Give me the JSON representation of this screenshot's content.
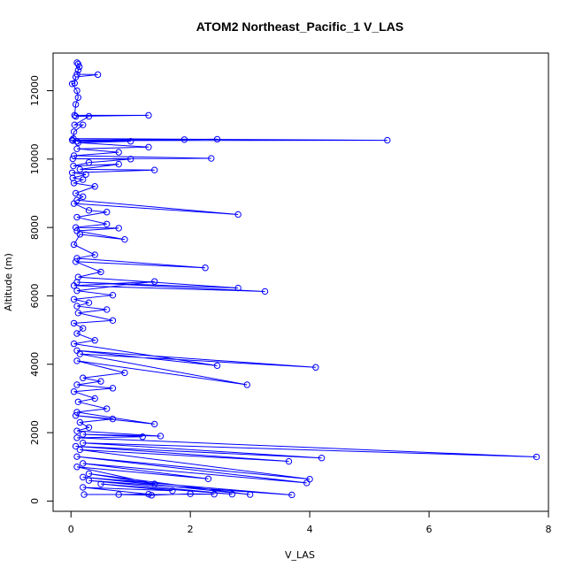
{
  "chart_data": {
    "type": "line",
    "title": "ATOM2 Northeast_Pacific_1 V_LAS",
    "xlabel": "V_LAS",
    "ylabel": "Altitude (m)",
    "xlim": [
      -0.3,
      8.0
    ],
    "ylim": [
      -300,
      13100
    ],
    "xticks": [
      0,
      2,
      4,
      6,
      8
    ],
    "yticks": [
      0,
      2000,
      4000,
      6000,
      8000,
      10000,
      12000
    ],
    "grid": false,
    "legend": "none",
    "series_color": "#0000ff",
    "marker": "open-circle",
    "series": [
      {
        "values": [
          [
            0.1,
            12820
          ],
          [
            0.12,
            12780
          ],
          [
            0.14,
            12700
          ],
          [
            0.12,
            12600
          ],
          [
            0.1,
            12480
          ],
          [
            0.45,
            12470
          ],
          [
            0.08,
            12400
          ],
          [
            0.06,
            12220
          ],
          [
            0.02,
            12200
          ],
          [
            0.1,
            12000
          ],
          [
            0.12,
            11800
          ],
          [
            0.08,
            11600
          ],
          [
            0.06,
            11280
          ],
          [
            1.3,
            11280
          ],
          [
            0.08,
            11250
          ],
          [
            0.3,
            11250
          ],
          [
            0.06,
            11000
          ],
          [
            0.2,
            11000
          ],
          [
            0.05,
            10800
          ],
          [
            0.04,
            10600
          ],
          [
            5.3,
            10550
          ],
          [
            0.03,
            10540
          ],
          [
            2.45,
            10580
          ],
          [
            0.02,
            10560
          ],
          [
            1.9,
            10570
          ],
          [
            0.1,
            10520
          ],
          [
            1.0,
            10520
          ],
          [
            0.12,
            10480
          ],
          [
            1.3,
            10350
          ],
          [
            0.1,
            10300
          ],
          [
            0.8,
            10200
          ],
          [
            0.05,
            10100
          ],
          [
            2.35,
            10020
          ],
          [
            0.03,
            10010
          ],
          [
            1.0,
            10000
          ],
          [
            0.3,
            9900
          ],
          [
            0.04,
            9800
          ],
          [
            0.8,
            9850
          ],
          [
            0.15,
            9700
          ],
          [
            1.4,
            9680
          ],
          [
            0.02,
            9600
          ],
          [
            0.25,
            9550
          ],
          [
            0.03,
            9450
          ],
          [
            0.2,
            9400
          ],
          [
            0.05,
            9300
          ],
          [
            0.4,
            9200
          ],
          [
            0.08,
            9000
          ],
          [
            0.2,
            8900
          ],
          [
            0.1,
            8800
          ],
          [
            2.8,
            8380
          ],
          [
            0.05,
            8700
          ],
          [
            0.3,
            8500
          ],
          [
            0.6,
            8450
          ],
          [
            0.1,
            8300
          ],
          [
            0.6,
            8100
          ],
          [
            0.08,
            8000
          ],
          [
            0.8,
            7980
          ],
          [
            0.1,
            7900
          ],
          [
            0.9,
            7650
          ],
          [
            0.15,
            7800
          ],
          [
            0.05,
            7500
          ],
          [
            0.4,
            7200
          ],
          [
            0.1,
            7100
          ],
          [
            2.25,
            6820
          ],
          [
            0.08,
            7000
          ],
          [
            0.5,
            6700
          ],
          [
            0.12,
            6550
          ],
          [
            2.8,
            6230
          ],
          [
            0.1,
            6400
          ],
          [
            3.25,
            6130
          ],
          [
            0.05,
            6300
          ],
          [
            1.4,
            6420
          ],
          [
            0.1,
            6150
          ],
          [
            0.7,
            6020
          ],
          [
            0.05,
            5900
          ],
          [
            0.3,
            5800
          ],
          [
            0.1,
            5700
          ],
          [
            0.6,
            5600
          ],
          [
            0.12,
            5500
          ],
          [
            0.7,
            5280
          ],
          [
            0.05,
            5200
          ],
          [
            0.2,
            5050
          ],
          [
            0.1,
            4900
          ],
          [
            0.4,
            4700
          ],
          [
            0.05,
            4600
          ],
          [
            2.45,
            3960
          ],
          [
            0.1,
            4400
          ],
          [
            4.1,
            3910
          ],
          [
            0.15,
            4300
          ],
          [
            2.95,
            3400
          ],
          [
            0.1,
            4100
          ],
          [
            0.9,
            3750
          ],
          [
            0.2,
            3600
          ],
          [
            0.5,
            3500
          ],
          [
            0.1,
            3400
          ],
          [
            0.7,
            3300
          ],
          [
            0.05,
            3200
          ],
          [
            0.4,
            3000
          ],
          [
            0.12,
            2900
          ],
          [
            0.6,
            2700
          ],
          [
            0.1,
            2600
          ],
          [
            1.4,
            2250
          ],
          [
            0.08,
            2500
          ],
          [
            0.7,
            2400
          ],
          [
            0.15,
            2300
          ],
          [
            0.3,
            2150
          ],
          [
            0.1,
            2050
          ],
          [
            1.5,
            1900
          ],
          [
            0.2,
            1950
          ],
          [
            1.2,
            1880
          ],
          [
            0.1,
            1850
          ],
          [
            7.8,
            1290
          ],
          [
            0.2,
            1700
          ],
          [
            4.2,
            1260
          ],
          [
            0.08,
            1600
          ],
          [
            3.65,
            1160
          ],
          [
            0.15,
            1500
          ],
          [
            4.0,
            640
          ],
          [
            0.1,
            1300
          ],
          [
            3.95,
            530
          ],
          [
            0.2,
            1100
          ],
          [
            2.3,
            650
          ],
          [
            0.1,
            1000
          ],
          [
            1.4,
            500
          ],
          [
            0.3,
            800
          ],
          [
            3.0,
            190
          ],
          [
            0.2,
            700
          ],
          [
            3.7,
            180
          ],
          [
            0.3,
            600
          ],
          [
            2.7,
            200
          ],
          [
            0.5,
            500
          ],
          [
            1.7,
            300
          ],
          [
            0.2,
            400
          ],
          [
            1.3,
            200
          ],
          [
            0.8,
            190
          ],
          [
            1.35,
            170
          ],
          [
            2.0,
            210
          ],
          [
            2.4,
            200
          ],
          [
            0.22,
            190
          ]
        ]
      }
    ]
  }
}
